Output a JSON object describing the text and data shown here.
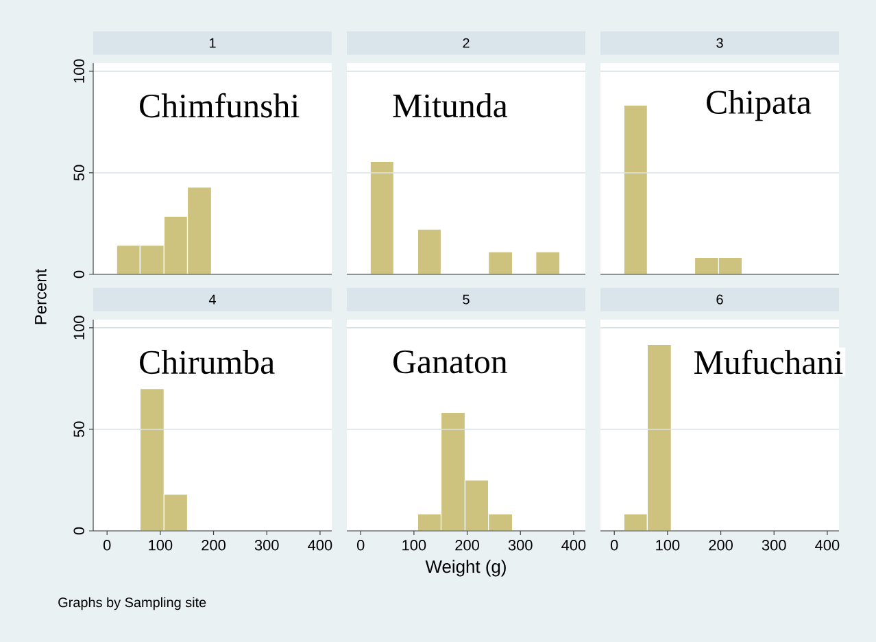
{
  "chart_data": [
    {
      "type": "histogram",
      "title": "1",
      "annotations": [
        "Chimfunshi"
      ],
      "ylabel": "Percent",
      "bins": [
        18,
        62,
        107,
        151,
        196
      ],
      "values": [
        14.3,
        14.3,
        28.6,
        42.9
      ],
      "color": "#cdc27e",
      "xlim": [
        -26,
        422
      ],
      "ylim": [
        0,
        104
      ],
      "xticks": [
        0,
        100,
        200,
        300,
        400
      ],
      "yticks": [
        0,
        50,
        100
      ],
      "grid": "y",
      "tick_labels": "y"
    },
    {
      "type": "histogram",
      "title": "2",
      "annotations": [
        "Mitunda"
      ],
      "bins": [
        18,
        62,
        107,
        151,
        240,
        285,
        329,
        374
      ],
      "values": [
        55.6,
        0,
        22.2,
        0,
        11.1,
        0,
        11.1
      ],
      "color": "#cdc27e",
      "xlim": [
        -26,
        422
      ],
      "ylim": [
        0,
        104
      ],
      "xticks": [
        0,
        100,
        200,
        300,
        400
      ],
      "yticks": [
        0,
        50,
        100
      ],
      "grid": "y",
      "tick_labels": false
    },
    {
      "type": "histogram",
      "title": "3",
      "annotations": [
        "Chipata"
      ],
      "bins": [
        18,
        62,
        151,
        196,
        240
      ],
      "values": [
        83.3,
        0,
        8.3,
        8.3
      ],
      "color": "#cdc27e",
      "xlim": [
        -26,
        422
      ],
      "ylim": [
        0,
        104
      ],
      "xticks": [
        0,
        100,
        200,
        300,
        400
      ],
      "yticks": [
        0,
        50,
        100
      ],
      "grid": "y",
      "tick_labels": false
    },
    {
      "type": "histogram",
      "title": "4",
      "annotations": [
        "Chirumba",
        "Graphs by Sampling site"
      ],
      "bins": [
        62,
        107,
        151
      ],
      "values": [
        70,
        18
      ],
      "color": "#cdc27e",
      "xlim": [
        -26,
        422
      ],
      "ylim": [
        0,
        104
      ],
      "xticks": [
        0,
        100,
        200,
        300,
        400
      ],
      "yticks": [
        0,
        50,
        100
      ],
      "grid": "y"
    },
    {
      "type": "histogram",
      "title": "5",
      "annotations": [
        "Ganaton"
      ],
      "xlabel": "Weight (g)",
      "bins": [
        107,
        151,
        196,
        240,
        285
      ],
      "values": [
        8.3,
        58.3,
        25,
        8.3
      ],
      "color": "#cdc27e",
      "xlim": [
        -26,
        422
      ],
      "ylim": [
        0,
        104
      ],
      "xticks": [
        0,
        100,
        200,
        300,
        400
      ],
      "yticks": [
        0,
        50,
        100
      ],
      "grid": "y",
      "tick_labels": "x"
    },
    {
      "type": "histogram",
      "title": "6",
      "annotations": [
        "Mufuchani"
      ],
      "bins": [
        18,
        62,
        107
      ],
      "values": [
        8.3,
        91.7
      ],
      "color": "#cdc27e",
      "xlim": [
        -26,
        422
      ],
      "ylim": [
        0,
        104
      ],
      "xticks": [
        0,
        100,
        200,
        300,
        400
      ],
      "yticks": [
        0,
        50,
        100
      ],
      "grid": "y",
      "tick_labels": "x"
    }
  ]
}
